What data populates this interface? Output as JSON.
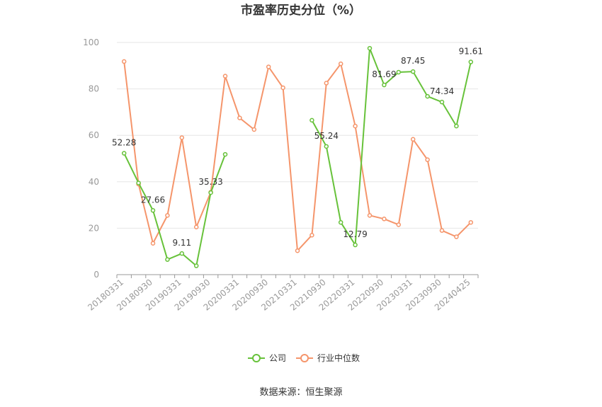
{
  "chart_data": {
    "type": "line",
    "title": "市盈率历史分位（%）",
    "source": "数据来源：恒生聚源",
    "ylim": [
      0,
      100
    ],
    "yticks": [
      0,
      20,
      40,
      60,
      80,
      100
    ],
    "grid": true,
    "legend_position": "bottom",
    "x": [
      "20180331",
      "20180630",
      "20180930",
      "20181231",
      "20190331",
      "20190630",
      "20190930",
      "20191231",
      "20200331",
      "20200630",
      "20200930",
      "20201231",
      "20210331",
      "20210630",
      "20210930",
      "20211231",
      "20220331",
      "20220630",
      "20220930",
      "20221231",
      "20230331",
      "20230630",
      "20230930",
      "20231231",
      "20240425"
    ],
    "xtick_labels": [
      "20180331",
      "20180930",
      "20190331",
      "20190930",
      "20200331",
      "20200930",
      "20210331",
      "20210930",
      "20220331",
      "20220930",
      "20230331",
      "20230930",
      "20240425"
    ],
    "series": [
      {
        "name": "公司",
        "color": "#67c23a",
        "values": [
          52.28,
          39.5,
          27.66,
          6.5,
          9.11,
          3.8,
          35.33,
          51.8,
          null,
          null,
          null,
          null,
          null,
          66.5,
          55.24,
          22.5,
          12.79,
          97.5,
          81.69,
          87.2,
          87.45,
          76.8,
          74.34,
          64.0,
          91.61
        ],
        "labels": [
          {
            "index": 0,
            "text": "52.28"
          },
          {
            "index": 2,
            "text": "27.66"
          },
          {
            "index": 4,
            "text": "9.11"
          },
          {
            "index": 6,
            "text": "35.33"
          },
          {
            "index": 14,
            "text": "55.24"
          },
          {
            "index": 16,
            "text": "12.79"
          },
          {
            "index": 18,
            "text": "81.69"
          },
          {
            "index": 20,
            "text": "87.45"
          },
          {
            "index": 22,
            "text": "74.34"
          },
          {
            "index": 24,
            "text": "91.61"
          }
        ]
      },
      {
        "name": "行业中位数",
        "color": "#f5956b",
        "values": [
          91.8,
          39.0,
          13.5,
          25.5,
          59.0,
          20.5,
          35.5,
          85.5,
          67.5,
          62.5,
          89.5,
          80.5,
          10.3,
          17.0,
          82.5,
          90.8,
          64.0,
          25.5,
          24.0,
          21.5,
          58.3,
          49.5,
          19.0,
          16.3,
          22.5
        ]
      }
    ]
  }
}
